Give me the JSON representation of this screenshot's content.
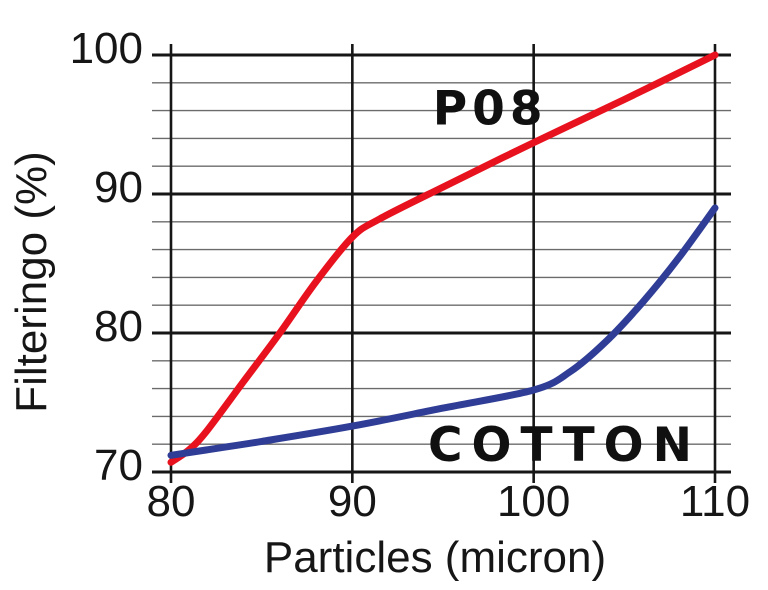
{
  "chart_data": {
    "type": "line",
    "title": "",
    "xlabel": "Particles (micron)",
    "ylabel": "Filteringo (%)",
    "xlim": [
      80,
      110
    ],
    "ylim": [
      70,
      100
    ],
    "x_ticks": [
      80,
      90,
      100,
      110
    ],
    "y_ticks": [
      70,
      80,
      90,
      100
    ],
    "y_minor_step": 2,
    "grid": "on",
    "legend_position": "inline-labels-on-plot",
    "colors": {
      "p08_line": "#e8121f",
      "cotton_line": "#2f3d96",
      "grid_major": "#161616",
      "grid_minor": "#6b6b6b",
      "text": "#161616",
      "background": "#ffffff"
    },
    "series": [
      {
        "name": "P08",
        "color_key": "p08_line",
        "label_anchor": {
          "x": 97.6,
          "y": 95.0
        },
        "points": [
          [
            80,
            70.7
          ],
          [
            81,
            71.6
          ],
          [
            82,
            73.0
          ],
          [
            84,
            76.5
          ],
          [
            86,
            80.0
          ],
          [
            88,
            83.7
          ],
          [
            90,
            86.9
          ],
          [
            91.5,
            88.2
          ],
          [
            95,
            90.5
          ],
          [
            100,
            93.7
          ],
          [
            105,
            96.8
          ],
          [
            110,
            100.0
          ]
        ]
      },
      {
        "name": "COTTON",
        "color_key": "cotton_line",
        "label_anchor": {
          "x": 101.7,
          "y": 70.8
        },
        "points": [
          [
            80,
            71.2
          ],
          [
            82,
            71.6
          ],
          [
            85,
            72.2
          ],
          [
            90,
            73.3
          ],
          [
            95,
            74.6
          ],
          [
            100,
            75.9
          ],
          [
            102,
            77.2
          ],
          [
            104,
            79.4
          ],
          [
            106,
            82.2
          ],
          [
            108,
            85.4
          ],
          [
            110,
            89.0
          ]
        ]
      }
    ]
  }
}
